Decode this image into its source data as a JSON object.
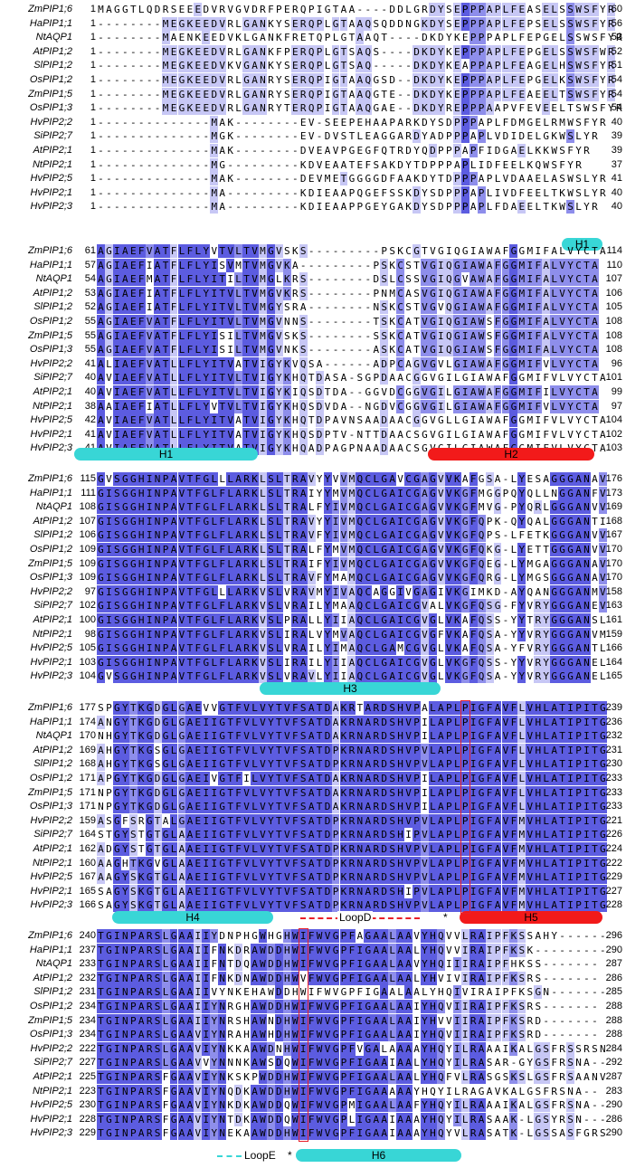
{
  "blocks": [
    {
      "rows": [
        {
          "name": "ZmPIP1;6",
          "start": "1",
          "end": "60",
          "seq": "MAGGTLQDRSEEEDVRVGVDRFPERQPIGTAA----DDLGRDYSEPPPAPLFEASELSSWSFYR"
        },
        {
          "name": "HaPIP1;1",
          "start": "1",
          "end": "56",
          "seq": "--------MEGKEEDVRLGANKYSERQPLGTAAQSQDDNGKDYSEPPPAPLFEPSELSSWSFYR"
        },
        {
          "name": "NtAQP1",
          "start": "1",
          "end": "53",
          "seq": "--------MAENKEEDVKLGANKFRETQPLGTAAQT----DKDYKEPPPAPLFEPGELSSWSFYR"
        },
        {
          "name": "AtPIP1;2",
          "start": "1",
          "end": "52",
          "seq": "--------MEGKEEDVRLGANKFPERQPLGTSAQS----DKDYKEPPPAPLFEPGELSSWSFWR"
        },
        {
          "name": "SlPIP1;2",
          "start": "1",
          "end": "51",
          "seq": "--------MEGKEEDVKVGANKYSERQPLGTSAQ-----DKDYKEAPPAPLFEAGELHSWSFYR"
        },
        {
          "name": "OsPIP1;2",
          "start": "1",
          "end": "54",
          "seq": "--------MEGKEEDVRLGANRYSERQPIGTAAQGSD--DKDYKEPPPAPLFEPGELKSWSFYR"
        },
        {
          "name": "ZmPIP1;5",
          "start": "1",
          "end": "54",
          "seq": "--------MEGKEEDVRLGANRYSERQPIGTAAQGTE--DKDYKEPPPAPLFEAEELTSWSFYR"
        },
        {
          "name": "OsPIP1;3",
          "start": "1",
          "end": "54",
          "seq": "--------MEGKEEDVRLGANRYTERQPIGTAAQGAE--DKDYREPPPAAPVFEVEELTSWSFYR"
        },
        {
          "name": "HvPIP2;2",
          "start": "1",
          "end": "40",
          "seq": "--------------MAK--------EV-SEEPEHAAPARKDYSDPPPAPLFDMGELRMWSFYR"
        },
        {
          "name": "SiPIP2;7",
          "start": "1",
          "end": "39",
          "seq": "--------------MGK--------EV-DVSTLEAGGARDYADPPPAPLVDIDELGKWSLYR"
        },
        {
          "name": "AtPIP2;1",
          "start": "1",
          "end": "39",
          "seq": "--------------MAK--------DVEAVPGEGFQTRDYQDPPPAPFIDGAELKKWSFYR"
        },
        {
          "name": "NtPIP2;1",
          "start": "1",
          "end": "37",
          "seq": "--------------MG---------KDVEAATEFSAKDYTDPPPAPLIDFEELKQWSFYR"
        },
        {
          "name": "HvPIP2;5",
          "start": "1",
          "end": "41",
          "seq": "--------------MAK--------DEVMETGGGGDFAAKDYTDPPPAPLVDAAELASWSLYR"
        },
        {
          "name": "HvPIP2;1",
          "start": "1",
          "end": "40",
          "seq": "--------------MA---------KDIEAAPQGEFSSKDYSDPPPAPLIVDFEELTKWSLYR"
        },
        {
          "name": "HvPIP2;3",
          "start": "1",
          "end": "40",
          "seq": "--------------MA---------KDIEAAPPGEYGAKDYSDPPPAPLFDAEELTKWSLYR"
        }
      ],
      "features": [
        {
          "label": "H1",
          "color": "cyan"
        }
      ]
    },
    {
      "rows": [
        {
          "name": "ZmPIP1;6",
          "start": "61",
          "end": "114",
          "seq": "AGIAEFVATFLFLYVTVLTVMGVSKS---------PSKCGTVGIQGIAWAFGGMIFALVYCTA"
        },
        {
          "name": "HaPIP1;1",
          "start": "57",
          "end": "110",
          "seq": "AGIAEFIATFLFLYISVMTVMGVKA---------PSKCSTVGIQGIAWAFGGMIFALVYCTA"
        },
        {
          "name": "NtAQP1",
          "start": "54",
          "end": "107",
          "seq": "AGIAEFMATFLFLYITILTVMGLKRS--------DSLCSSVGIQGVAWAFGGMIFALVYCTA"
        },
        {
          "name": "AtPIP1;2",
          "start": "53",
          "end": "106",
          "seq": "AGIAEFIATFLFLYITVLTVMGVKRS--------PNMCASVGIQGIAWAFGGMIFALVYCTA"
        },
        {
          "name": "SlPIP1;2",
          "start": "52",
          "end": "105",
          "seq": "AGIAEFIATFLFLYITVLTVMGYSRA--------NSKCSTVGVQGIAWAFGGMIFALVYCTA"
        },
        {
          "name": "OsPIP1;2",
          "start": "55",
          "end": "108",
          "seq": "AGIAEFVATFLFLYITVLTVMGVNNS--------TSKCATVGIQGIAWSFGGMIFALVYCTA"
        },
        {
          "name": "ZmPIP1;5",
          "start": "55",
          "end": "108",
          "seq": "AGIAEFVATFLFLYISILTVMGVSKS--------SSKCATVGIQGIAWSFGGMIFALVYCTA"
        },
        {
          "name": "OsPIP1;3",
          "start": "55",
          "end": "108",
          "seq": "AGIAEFVATFLFLYISILTVMGVNKS--------ASKCATVGIQGIAWSFGGMIFALVYCTA"
        },
        {
          "name": "HvPIP2;2",
          "start": "41",
          "end": "96",
          "seq": "ALIAEFVATLLFLYITVATVIGYKVQSA------ADPCAGVGVLGIAWAFGGMIFVLVYCTA"
        },
        {
          "name": "SiPIP2;7",
          "start": "40",
          "end": "101",
          "seq": "AVIAEFVATLLFLYITVLTVIGYKHQTDASA-SGPDAACGGVGILGIAWAFGGMIFVLVYCTA"
        },
        {
          "name": "AtPIP2;1",
          "start": "40",
          "end": "99",
          "seq": "AVIAEFVATLLFLYITVLTVIGYKIQSDTDA--GGVDCGGVGILGIAWAFGGMIFILVYCTA"
        },
        {
          "name": "NtPIP2;1",
          "start": "38",
          "end": "97",
          "seq": "AAIAEFIATLLFLYVTVLTVIGYKHQSDVDA--NGDVCGGVGILGIAWAFGGMIFVLVYCTA"
        },
        {
          "name": "HvPIP2;5",
          "start": "42",
          "end": "104",
          "seq": "AVIAEFVATLLFLYITVATVIGYKHQTDPAVNSAADAACGGVGLLGIAWAFGGMIFVLVYCTA"
        },
        {
          "name": "HvPIP2;1",
          "start": "41",
          "end": "102",
          "seq": "AVIAEFVATLLFLYITVATVIGYKHQSDPTV-NTTDAACSGVGILGIAWAFGGMIFVLVYCTA"
        },
        {
          "name": "HvPIP2;3",
          "start": "41",
          "end": "103",
          "seq": "AVIAEFVATLLFLYITVATVIGYKHQADPAGPNAADAACSGVGILGIAWAFGGMIFVLVYCTA"
        }
      ],
      "features": [
        {
          "label": "H1",
          "color": "cyan"
        },
        {
          "label": "H2",
          "color": "red"
        }
      ]
    },
    {
      "rows": [
        {
          "name": "ZmPIP1;6",
          "start": "115",
          "end": "176",
          "seq": "GVSGGHINPAVTFGLLLARKLSLTRAVYYVVMQCLGAVCGAGVVKAFGSA-LYESAGGGANAV"
        },
        {
          "name": "HaPIP1;1",
          "start": "111",
          "end": "173",
          "seq": "GISGGHINPAVTFGLFLARKLSLTRAIYYMVMQCLGAICGAGVVKGFMGGPQYQLLNGGANFV"
        },
        {
          "name": "NtAQP1",
          "start": "108",
          "end": "169",
          "seq": "GISGGHINPAVTFGLFLARKLSLTRALFYIVMQCLGAICGAGVVKGFMVG-PYQRLGGGANVV"
        },
        {
          "name": "AtPIP1;2",
          "start": "107",
          "end": "168",
          "seq": "GISGGHINPAVTFGLFLARKLSLTRAVYYIVMQCLGAICGAGVVKGFQPK-QYQALGGGANTI"
        },
        {
          "name": "SlPIP1;2",
          "start": "106",
          "end": "167",
          "seq": "GISGGHINPAVTFGLFLARKLSLTRAVFYIVMQCLGAICGAGVVKGFQPS-LFETKGGGANVV"
        },
        {
          "name": "OsPIP1;2",
          "start": "109",
          "end": "170",
          "seq": "GISGGHINPAVTFGLFLARKLSLTRALFYMVMQCLGAICGAGVVKGFQKG-LYETTGGGANVV"
        },
        {
          "name": "ZmPIP1;5",
          "start": "109",
          "end": "170",
          "seq": "GISGGHINPAVTFGLFLARKLSLTRAIFYIVMQCLGAICGAGVVKGFQEG-LYMGAGGGANAV"
        },
        {
          "name": "OsPIP1;3",
          "start": "109",
          "end": "170",
          "seq": "GISGGHINPAVTFGLFLARKLSLTRAVFYMAMQCLGAICGAGVVKGFQRG-LYMGSGGGANAV"
        },
        {
          "name": "HvPIP2;2",
          "start": "97",
          "end": "158",
          "seq": "GISGGHINPAVTFGLLLARKVSLVRAVMYIVAQCAGGIVGAGIVKGIMKD-AYQANGGGANMV"
        },
        {
          "name": "SiPIP2;7",
          "start": "102",
          "end": "163",
          "seq": "GISGGHINPAVTFGLFLARKVSLVRAILYMAAQCLGAICGVALVKGFQSG-FYVRYGGGANEV"
        },
        {
          "name": "AtPIP2;1",
          "start": "100",
          "end": "161",
          "seq": "GISGGHINPAVTFGLFLARKVSLPRALLYIIAQCLGAICGVGLVKAFQSS-YYTRYGGGANSL"
        },
        {
          "name": "NtPIP2;1",
          "start": "98",
          "end": "159",
          "seq": "GISGGHINPAVTFGLFLARKVSLIRALVYMVAQCLGAICGVGFVKAFQSA-YYVRYGGGANVM"
        },
        {
          "name": "HvPIP2;5",
          "start": "105",
          "end": "166",
          "seq": "GISGGHINPAVTFGLFLARKVSLVRAILYIMAQCLGAMCGVGLVKAFQSA-YFVRYGGGANTL"
        },
        {
          "name": "HvPIP2;1",
          "start": "103",
          "end": "164",
          "seq": "GISGGHINPAVTFGLFLARKVSLIRAILYIIAQCLGAICGVGLVKGFQSS-YYVRYGGGANEL"
        },
        {
          "name": "HvPIP2;3",
          "start": "104",
          "end": "165",
          "seq": "GVSGGHINPAVTFGLFLARKVSLVRAVLYIIAQCLGAICGVGLVKGFQSA-YYVRYGGGANEL"
        }
      ],
      "features": [
        {
          "label": "H3",
          "color": "cyan"
        }
      ]
    },
    {
      "rows": [
        {
          "name": "ZmPIP1;6",
          "start": "177",
          "end": "239",
          "seq": "SPGYTKGDGLGAEVVGTFVLVYTVFSATDAKRTARDSHVPALAPLPIGFAVFLVHLATIPITG"
        },
        {
          "name": "HaPIP1;1",
          "start": "174",
          "end": "236",
          "seq": "ANGYTKGDGLGAEIIGTFVLVYTVFSATDAKRNARDSHVPILAPLPIGFAVFLVHLATIPITG"
        },
        {
          "name": "NtAQP1",
          "start": "170",
          "end": "232",
          "seq": "NHGYTKGDGLGAEIIGTFVLVYTVFSATDAKRNARDSHVPILAPLPIGFAVFLVHLATIPITG"
        },
        {
          "name": "AtPIP1;2",
          "start": "169",
          "end": "231",
          "seq": "AHGYTKGSGLGAEIIGTFVLVYTVFSATDPKRNARDSHVPVLAPLPIGFAVFLVHLATIPITG"
        },
        {
          "name": "SlPIP1;2",
          "start": "168",
          "end": "230",
          "seq": "AHGYTKGSGLGAEIIGTFVLVYTVFSATDPKRNARDSHVPVLAPLPIGFAVFLVHLATIPITG"
        },
        {
          "name": "OsPIP1;2",
          "start": "171",
          "end": "233",
          "seq": "APGYTKGDGLGAEIVGTFILVYTVFSATDAKRNARDSHVPILAPLPIGFAVFLVHLATIPITG"
        },
        {
          "name": "ZmPIP1;5",
          "start": "171",
          "end": "233",
          "seq": "NPGYTKGDGLGAEIIGTFVLVYTVFSATDAKRNARDSHVPILAPLPIGFAVFLVHLATIPITG"
        },
        {
          "name": "OsPIP1;3",
          "start": "171",
          "end": "233",
          "seq": "NPGYTKGDGLGAEIIGTFVLVYTVFSATDAKRNARDSHVPILAPLPIGFAVFLVHLATIPITG"
        },
        {
          "name": "HvPIP2;2",
          "start": "159",
          "end": "221",
          "seq": "ASGFSRGTALGAEIIGTFVLVYTVFSATDPKRNARDSHVPVLAPLPIGFAVFMVHLATIPITG"
        },
        {
          "name": "SiPIP2;7",
          "start": "164",
          "end": "226",
          "seq": "STGYSTGTGLAAEIIGTFVLVYTVFSATDPKRNARDSHIPVLAPLPIGFAVFMVHLATIPITG"
        },
        {
          "name": "AtPIP2;1",
          "start": "162",
          "end": "224",
          "seq": "ADGYSTGTGLAAEIIGTFVLVYTVFSATDPKRNARDSHVPVLAPLPIGFAVFMVHLATIPITG"
        },
        {
          "name": "NtPIP2;1",
          "start": "160",
          "end": "222",
          "seq": "AAGHTKGVGLAAEIIGTFVLVYTVFSATDPKRNARDSHVPVLAPLPIGFAVFMVHLATIPITG"
        },
        {
          "name": "HvPIP2;5",
          "start": "167",
          "end": "229",
          "seq": "AAGYSKGTGLAAEIIGTFVLVYTVFSATDPKRNARDSHVPVLAPLPIGFAVFMVHLATIPITG"
        },
        {
          "name": "HvPIP2;1",
          "start": "165",
          "end": "227",
          "seq": "SAGYSKGTGLAAEIIGTFVLVYTVFSATDPKRNARDSHIPVLAPLPIGFAVFMVHLATIPITG"
        },
        {
          "name": "HvPIP2;3",
          "start": "166",
          "end": "228",
          "seq": "SAGYSKGTGLAAEIIGTFVLVYTVFSATDPKRNARDSHVPVLAPLPIGFAVFMVHLATIPITG"
        }
      ],
      "features": [
        {
          "label": "H4",
          "color": "cyan"
        },
        {
          "label": "LoopD",
          "color": "red-dashed"
        },
        {
          "label": "*",
          "color": "none"
        },
        {
          "label": "H5",
          "color": "red"
        }
      ]
    },
    {
      "rows": [
        {
          "name": "ZmPIP1;6",
          "start": "240",
          "end": "296",
          "seq": "TGINPARSLGAAIIYDNPHGWHGHWIFWVGPFAGAALAAVYHQVVLRAIPFKSSAHY------"
        },
        {
          "name": "HaPIP1;1",
          "start": "237",
          "end": "290",
          "seq": "TGINPARSLGAAIIFNKDRAWDDHWIFWVGPFIGAALAALYHQVVIRAIPFKSK---------"
        },
        {
          "name": "NtAQP1",
          "start": "233",
          "end": "287",
          "seq": "TGINPARSLGAAIIFNTDQAWDDHWIFWVGPFIGAALAAVYHQIIIRAIPFHKSS-------"
        },
        {
          "name": "AtPIP1;2",
          "start": "232",
          "end": "286",
          "seq": "TGINPARSLGAAIIFNKDNAWDDHWVFWVGPFIGAALAALYHVIVIRAIPFKSRS-------"
        },
        {
          "name": "SlPIP1;2",
          "start": "231",
          "end": "285",
          "seq": "TGINPARSLGAAIIVYNKEHAWDDHWIFWVGPFIGAALAALYHQIVIRAIPFKSGN-------"
        },
        {
          "name": "OsPIP1;2",
          "start": "234",
          "end": "288",
          "seq": "TGINPARSLGAAIIYNRGHAWDDHWIFWVGPFIGAALAAIYHQVIIRAIPFKSRS-------"
        },
        {
          "name": "ZmPIP1;5",
          "start": "234",
          "end": "288",
          "seq": "TGINPARSLGAAIIYNRSHAWNDHWIFWVGPFIGAALAAIYHVVIIRAIPFKSRD-------"
        },
        {
          "name": "OsPIP1;3",
          "start": "234",
          "end": "288",
          "seq": "TGINPARSLGAAVIYNRAHAWHDHWIFWVGPFIGAALAAIYHQVIIRAIPFKSRD-------"
        },
        {
          "name": "HvPIP2;2",
          "start": "222",
          "end": "284",
          "seq": "TGINPARSLGAAVIYNKKAAWDNHWIFWVGPFVGALAAAAYHQYILRAAAIKALGSFRSSRSN"
        },
        {
          "name": "SiPIP2;7",
          "start": "227",
          "end": "292",
          "seq": "TGINPARSLGAAVVYNNNKAWSDQWIFWVGPFIGAAIAALYHQYILRASAR-GYGSFRSNA--"
        },
        {
          "name": "AtPIP2;1",
          "start": "225",
          "end": "287",
          "seq": "TGINPARSFGAAVIYNKSKPWDDHWIFWVGPFIGAALAALYHQFVLRASGSKSLGSFRSAANV"
        },
        {
          "name": "NtPIP2;1",
          "start": "223",
          "end": "283",
          "seq": "TGINPARSFGAAVIYNQDKAWDDHWIFWVGPFIGAAAAAYHQYILRAGAVKALGSFRSNA--"
        },
        {
          "name": "HvPIP2;5",
          "start": "230",
          "end": "290",
          "seq": "TGINPARSFGAAVIYNKDKAWDDQWIFWVGPMIGAALAAFYHQYILRAAAIKALGSFRSNA--"
        },
        {
          "name": "HvPIP2;1",
          "start": "228",
          "end": "286",
          "seq": "TGINPARSFGAAVIYNTDKAWDDQWIFWVGPLIGAAIAAAYHQYILRASAAK-LGSYRSN---"
        },
        {
          "name": "HvPIP2;3",
          "start": "229",
          "end": "290",
          "seq": "TGINPARSFGAAVIYNEKAAWDDHWIFWVGPFIGAAIAAAYHQYVLRASATK-LGSSASFGRS"
        }
      ],
      "features": [
        {
          "label": "LoopE",
          "color": "cyan-dashed"
        },
        {
          "label": "*",
          "color": "none"
        },
        {
          "label": "H6",
          "color": "cyan"
        }
      ]
    }
  ]
}
